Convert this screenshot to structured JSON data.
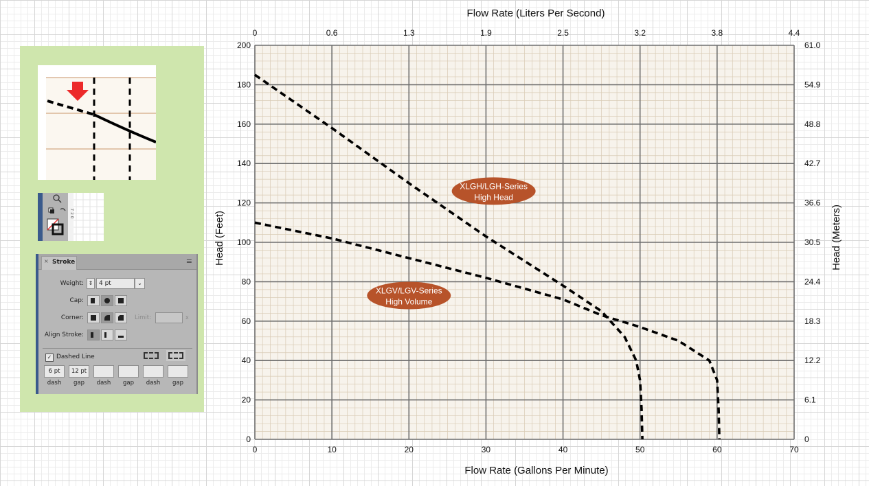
{
  "chart_data": {
    "type": "line",
    "x_axis_bottom": {
      "label": "Flow Rate (Gallons Per Minute)",
      "range": [
        0,
        70
      ],
      "ticks": [
        "0",
        "10",
        "20",
        "30",
        "40",
        "50",
        "60",
        "70"
      ]
    },
    "x_axis_top": {
      "label": "Flow Rate (Liters Per Second)",
      "ticks": [
        "0",
        "0.6",
        "1.3",
        "1.9",
        "2.5",
        "3.2",
        "3.8",
        "4.4"
      ]
    },
    "y_axis_left": {
      "label": "Head (Feet)",
      "range": [
        0,
        200
      ],
      "ticks": [
        "0",
        "20",
        "40",
        "60",
        "80",
        "100",
        "120",
        "140",
        "160",
        "180",
        "200"
      ]
    },
    "y_axis_right": {
      "label": "Head (Meters)",
      "ticks": [
        "0",
        "6.1",
        "12.2",
        "18.3",
        "24.4",
        "30.5",
        "36.6",
        "42.7",
        "48.8",
        "54.9",
        "61.0"
      ]
    },
    "grid": true,
    "series": [
      {
        "name": "XLGH/LGH-Series High Head",
        "label_lines": [
          "XLGH/LGH-Series",
          "High Head"
        ],
        "label_pos": [
          31,
          126
        ],
        "style": "dashed",
        "points": [
          [
            0,
            185
          ],
          [
            10,
            158
          ],
          [
            20,
            130
          ],
          [
            30,
            103
          ],
          [
            40,
            78
          ],
          [
            45,
            65
          ],
          [
            48,
            52
          ],
          [
            49.5,
            40
          ],
          [
            50,
            30
          ],
          [
            50.2,
            15
          ],
          [
            50.3,
            0
          ]
        ]
      },
      {
        "name": "XLGV/LGV-Series High Volume",
        "label_lines": [
          "XLGV/LGV-Series",
          "High Volume"
        ],
        "label_pos": [
          20,
          73
        ],
        "style": "dashed",
        "points": [
          [
            0,
            110
          ],
          [
            10,
            102
          ],
          [
            20,
            92
          ],
          [
            30,
            82
          ],
          [
            40,
            71
          ],
          [
            45,
            63
          ],
          [
            50,
            57
          ],
          [
            55,
            50
          ],
          [
            59,
            40
          ],
          [
            60,
            30
          ],
          [
            60.2,
            15
          ],
          [
            60.3,
            0
          ]
        ]
      }
    ],
    "colors": {
      "plot_background": "#f7f3ec",
      "major_grid": "#6e6e6e",
      "minor_grid": "#d9cbb5",
      "curve": "#000000",
      "label_bubble": "#b7532a",
      "label_text": "#ffffff"
    }
  },
  "side_panel": {
    "background": "#cfe6ad",
    "stroke_panel": {
      "tab_close": "×",
      "tab_label": "Stroke",
      "menu_icon": "hamburger-icon",
      "weight_label": "Weight:",
      "weight_value": "4 pt",
      "cap_label": "Cap:",
      "corner_label": "Corner:",
      "limit_label": "Limit:",
      "limit_suffix": "x",
      "align_label": "Align Stroke:",
      "dashed_checkbox": "✓",
      "dashed_label": "Dashed Line",
      "dash_values": [
        "6 pt",
        "12 pt",
        "",
        "",
        "",
        ""
      ],
      "dash_captions": [
        "dash",
        "gap",
        "dash",
        "gap",
        "dash",
        "gap"
      ]
    },
    "toolbar_digits": "7 2 0"
  }
}
